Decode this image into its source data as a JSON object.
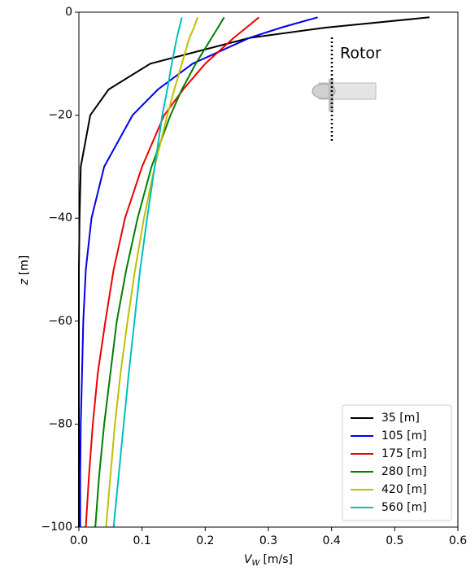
{
  "chart_data": {
    "type": "line",
    "xlabel": {
      "symbol": "V",
      "subscript": "W",
      "unit": "[m/s]"
    },
    "ylabel": {
      "symbol": "z",
      "unit": "[m]"
    },
    "annotation": "Rotor",
    "y": [
      -1,
      -3,
      -5,
      -10,
      -15,
      -20,
      -30,
      -40,
      -50,
      -60,
      -70,
      -80,
      -90,
      -100
    ],
    "series": [
      {
        "name": "35 [m]",
        "color": "#000000",
        "values": [
          0.555,
          0.39,
          0.27,
          0.113,
          0.047,
          0.018,
          0.003,
          0.001,
          0,
          0,
          0,
          0,
          0,
          0
        ]
      },
      {
        "name": "105 [m]",
        "color": "#0000ee",
        "values": [
          0.378,
          0.32,
          0.27,
          0.18,
          0.125,
          0.085,
          0.04,
          0.02,
          0.011,
          0.007,
          0.005,
          0.003,
          0.002,
          0.002
        ]
      },
      {
        "name": "175 [m]",
        "color": "#ee0000",
        "values": [
          0.285,
          0.265,
          0.245,
          0.2,
          0.165,
          0.135,
          0.1,
          0.073,
          0.055,
          0.042,
          0.03,
          0.022,
          0.016,
          0.011
        ]
      },
      {
        "name": "280 [m]",
        "color": "#007f00",
        "values": [
          0.23,
          0.22,
          0.21,
          0.185,
          0.163,
          0.145,
          0.115,
          0.093,
          0.075,
          0.06,
          0.05,
          0.04,
          0.032,
          0.026
        ]
      },
      {
        "name": "420 [m]",
        "color": "#bfbf00",
        "values": [
          0.188,
          0.182,
          0.175,
          0.163,
          0.151,
          0.14,
          0.12,
          0.103,
          0.089,
          0.077,
          0.066,
          0.057,
          0.05,
          0.043
        ]
      },
      {
        "name": "560 [m]",
        "color": "#00bfbf",
        "values": [
          0.163,
          0.159,
          0.155,
          0.147,
          0.14,
          0.132,
          0.12,
          0.108,
          0.097,
          0.088,
          0.079,
          0.071,
          0.063,
          0.055
        ]
      }
    ],
    "xlim": [
      0,
      0.6
    ],
    "xticks": [
      {
        "value": 0,
        "label": "0.0"
      },
      0.1,
      0.2,
      0.3,
      0.4,
      0.5,
      0.6
    ],
    "ylim": [
      -100,
      0
    ],
    "yticks": [
      {
        "value": -100,
        "label": "−100"
      },
      {
        "value": -80,
        "label": "−80"
      },
      {
        "value": -60,
        "label": "−60"
      },
      {
        "value": -40,
        "label": "−40"
      },
      {
        "value": -20,
        "label": "−20"
      },
      0
    ],
    "grid": false,
    "legend": "lower right"
  }
}
